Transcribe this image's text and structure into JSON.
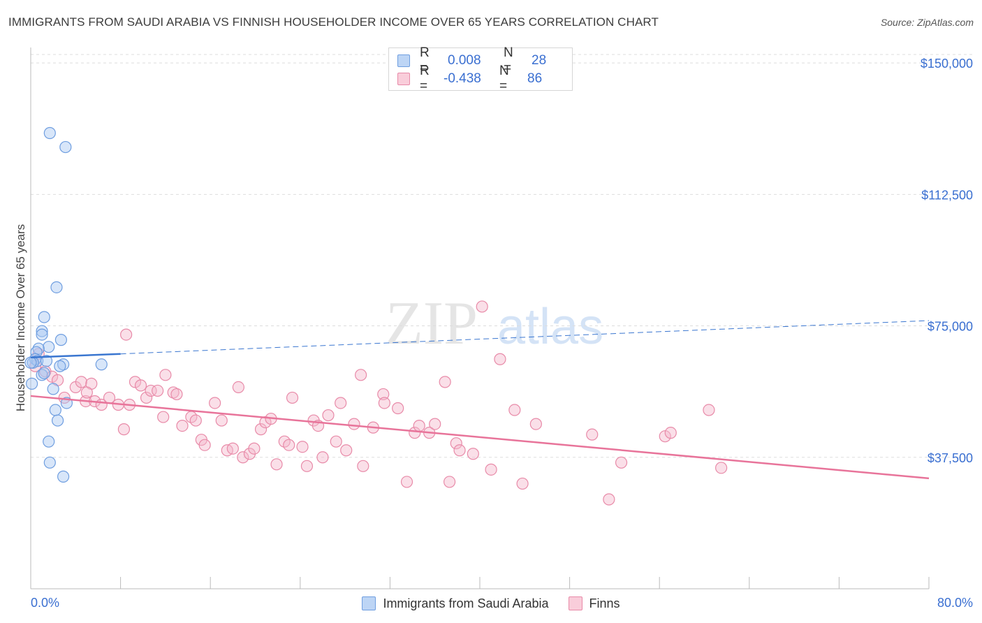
{
  "header": {
    "title": "IMMIGRANTS FROM SAUDI ARABIA VS FINNISH HOUSEHOLDER INCOME OVER 65 YEARS CORRELATION CHART",
    "source": "Source: ZipAtlas.com"
  },
  "watermark": {
    "part1": "ZIP",
    "part2": "atlas"
  },
  "legend_top": {
    "rows": [
      {
        "r_label": "R =",
        "r_value": "0.008",
        "n_label": "N =",
        "n_value": "28"
      },
      {
        "r_label": "R =",
        "r_value": "-0.438",
        "n_label": "N =",
        "n_value": "86"
      }
    ]
  },
  "legend_bottom": {
    "items": [
      {
        "label": "Immigrants from Saudi Arabia"
      },
      {
        "label": "Finns"
      }
    ]
  },
  "colors": {
    "blue_fill": "#a9c7f2",
    "blue_stroke": "#6f9ee0",
    "blue_line": "#3a76d0",
    "pink_fill": "#f5b9cc",
    "pink_stroke": "#e88aa8",
    "pink_line": "#e8749a",
    "axis_label": "#3a6fd1",
    "grid": "#dddddd"
  },
  "chart_data": {
    "type": "scatter",
    "title": "IMMIGRANTS FROM SAUDI ARABIA VS FINNISH HOUSEHOLDER INCOME OVER 65 YEARS CORRELATION CHART",
    "xlabel": "",
    "ylabel": "Householder Income Over 65 years",
    "xlim": [
      0,
      80
    ],
    "ylim": [
      0,
      156000
    ],
    "x_tick_labels": [
      "0.0%",
      "80.0%"
    ],
    "y_ticks": [
      37500,
      75000,
      112500,
      150000
    ],
    "y_tick_labels": [
      "$37,500",
      "$75,000",
      "$112,500",
      "$150,000"
    ],
    "grid": "horizontal dashed",
    "legend_position": "top-center",
    "series": [
      {
        "name": "Immigrants from Saudi Arabia",
        "r": 0.008,
        "n": 28,
        "trend": {
          "x": [
            0,
            8
          ],
          "y": [
            66000,
            67000
          ],
          "dashed_to": [
            80,
            76500
          ]
        },
        "points": [
          [
            1.7,
            130000
          ],
          [
            3.1,
            126000
          ],
          [
            2.3,
            86000
          ],
          [
            1.2,
            77500
          ],
          [
            1.0,
            73500
          ],
          [
            1.0,
            72500
          ],
          [
            2.7,
            71000
          ],
          [
            1.6,
            69000
          ],
          [
            0.7,
            68500
          ],
          [
            0.5,
            67500
          ],
          [
            0.4,
            65500
          ],
          [
            0.6,
            65000
          ],
          [
            0.2,
            64500
          ],
          [
            1.4,
            65000
          ],
          [
            2.9,
            64000
          ],
          [
            2.6,
            63500
          ],
          [
            6.3,
            64000
          ],
          [
            1.0,
            61000
          ],
          [
            1.2,
            61500
          ],
          [
            0.1,
            58500
          ],
          [
            2.0,
            57000
          ],
          [
            3.2,
            53000
          ],
          [
            2.2,
            51000
          ],
          [
            2.4,
            48000
          ],
          [
            1.6,
            42000
          ],
          [
            1.7,
            36000
          ],
          [
            2.9,
            32000
          ],
          [
            0.0,
            64500
          ]
        ]
      },
      {
        "name": "Finns",
        "r": -0.438,
        "n": 86,
        "trend": {
          "x": [
            0,
            80
          ],
          "y": [
            55000,
            31500
          ]
        },
        "points": [
          [
            0.7,
            67000
          ],
          [
            1.3,
            62000
          ],
          [
            1.9,
            60500
          ],
          [
            2.4,
            59500
          ],
          [
            3.0,
            54500
          ],
          [
            4.0,
            57500
          ],
          [
            4.5,
            59000
          ],
          [
            4.9,
            53500
          ],
          [
            5.4,
            58500
          ],
          [
            5.7,
            53500
          ],
          [
            6.3,
            52500
          ],
          [
            7.0,
            54500
          ],
          [
            7.8,
            52500
          ],
          [
            8.3,
            45500
          ],
          [
            8.5,
            72500
          ],
          [
            8.8,
            52500
          ],
          [
            9.3,
            59000
          ],
          [
            9.8,
            58000
          ],
          [
            10.3,
            54500
          ],
          [
            10.7,
            56500
          ],
          [
            11.3,
            56500
          ],
          [
            12.0,
            61000
          ],
          [
            11.8,
            49000
          ],
          [
            12.7,
            56000
          ],
          [
            13.0,
            55500
          ],
          [
            13.5,
            46500
          ],
          [
            14.3,
            49000
          ],
          [
            14.7,
            48000
          ],
          [
            15.2,
            42500
          ],
          [
            15.5,
            41000
          ],
          [
            16.4,
            53000
          ],
          [
            17.0,
            48000
          ],
          [
            17.5,
            39500
          ],
          [
            18.0,
            40000
          ],
          [
            18.5,
            57500
          ],
          [
            18.9,
            37500
          ],
          [
            19.5,
            38500
          ],
          [
            19.9,
            40000
          ],
          [
            20.5,
            45500
          ],
          [
            20.9,
            47500
          ],
          [
            21.4,
            48500
          ],
          [
            21.9,
            35500
          ],
          [
            22.6,
            42000
          ],
          [
            23.0,
            41000
          ],
          [
            23.3,
            54500
          ],
          [
            24.2,
            40500
          ],
          [
            24.6,
            35000
          ],
          [
            25.2,
            48000
          ],
          [
            25.6,
            46500
          ],
          [
            26.0,
            37500
          ],
          [
            26.5,
            49500
          ],
          [
            27.2,
            42000
          ],
          [
            27.6,
            53000
          ],
          [
            28.1,
            39500
          ],
          [
            28.8,
            47000
          ],
          [
            29.4,
            61000
          ],
          [
            29.6,
            35000
          ],
          [
            30.5,
            46000
          ],
          [
            31.4,
            55500
          ],
          [
            31.5,
            53000
          ],
          [
            32.7,
            51500
          ],
          [
            33.5,
            30500
          ],
          [
            34.2,
            44500
          ],
          [
            34.6,
            46500
          ],
          [
            35.5,
            44500
          ],
          [
            36.0,
            47000
          ],
          [
            36.9,
            59000
          ],
          [
            37.3,
            30500
          ],
          [
            37.9,
            41500
          ],
          [
            38.2,
            39500
          ],
          [
            39.4,
            38500
          ],
          [
            40.2,
            80500
          ],
          [
            41.0,
            34000
          ],
          [
            41.8,
            65500
          ],
          [
            43.1,
            51000
          ],
          [
            43.8,
            30000
          ],
          [
            45.0,
            47000
          ],
          [
            50.0,
            44000
          ],
          [
            51.5,
            25500
          ],
          [
            52.6,
            36000
          ],
          [
            56.5,
            43500
          ],
          [
            57.0,
            44500
          ],
          [
            60.4,
            51000
          ],
          [
            61.5,
            34500
          ],
          [
            0.4,
            63500
          ],
          [
            5.0,
            56000
          ]
        ]
      }
    ]
  }
}
